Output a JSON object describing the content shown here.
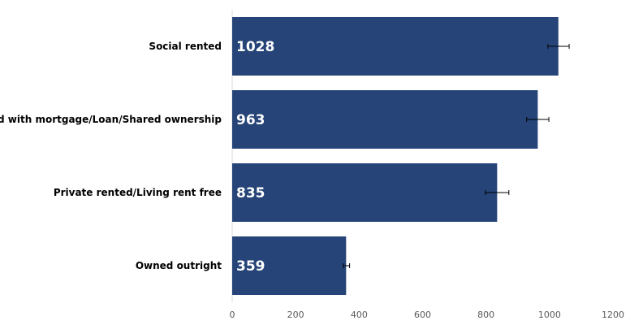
{
  "chart_data": {
    "type": "bar",
    "orientation": "horizontal",
    "categories": [
      "Social rented",
      "Owned with mortgage/Loan/Shared ownership",
      "Private rented/Living rent free",
      "Owned outright"
    ],
    "values": [
      1028,
      963,
      835,
      359
    ],
    "error": [
      [
        995,
        1062
      ],
      [
        928,
        998
      ],
      [
        798,
        872
      ],
      [
        350,
        370
      ]
    ],
    "data_labels": [
      "1028",
      "963",
      "835",
      "359"
    ],
    "xticks": [
      0,
      200,
      400,
      600,
      800,
      1000,
      1200
    ],
    "xlim": [
      0,
      1200
    ],
    "bar_color": "#264478",
    "grid": false,
    "legend": "none",
    "title": "",
    "xlabel": "",
    "ylabel": ""
  }
}
